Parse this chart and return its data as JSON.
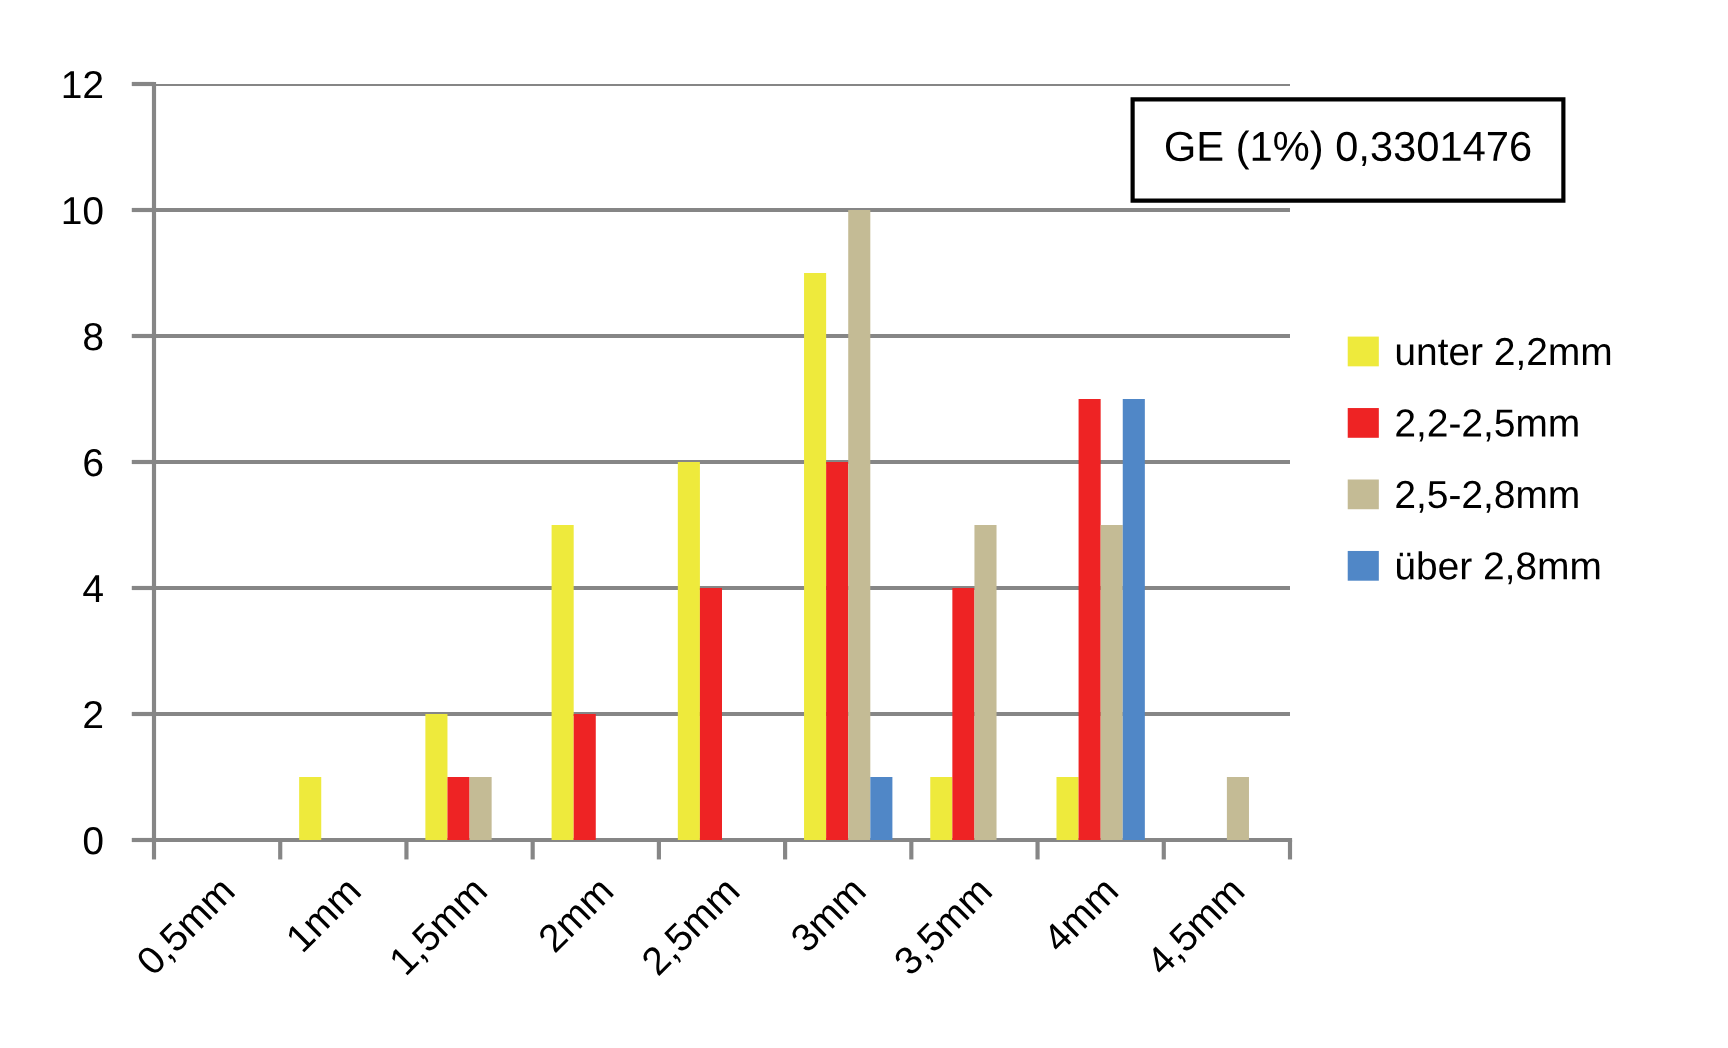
{
  "chart_data": {
    "type": "bar",
    "categories": [
      "0,5mm",
      "1mm",
      "1,5mm",
      "2mm",
      "2,5mm",
      "3mm",
      "3,5mm",
      "4mm",
      "4,5mm"
    ],
    "series": [
      {
        "name": "unter 2,2mm",
        "color": "#eeea3c",
        "values": [
          0,
          1,
          2,
          5,
          6,
          9,
          1,
          1,
          0
        ]
      },
      {
        "name": "2,2-2,5mm",
        "color": "#ee2324",
        "values": [
          0,
          0,
          1,
          2,
          4,
          6,
          4,
          7,
          0
        ]
      },
      {
        "name": "2,5-2,8mm",
        "color": "#c4bb95",
        "values": [
          0,
          0,
          1,
          0,
          0,
          10,
          5,
          5,
          1
        ]
      },
      {
        "name": "über 2,8mm",
        "color": "#5087c7",
        "values": [
          0,
          0,
          0,
          0,
          0,
          1,
          0,
          7,
          0
        ]
      }
    ],
    "ylim": [
      0,
      12
    ],
    "yticks": [
      0,
      2,
      4,
      6,
      8,
      10,
      12
    ],
    "grid": "y",
    "legend": "right",
    "annotations": [
      "GE (1%) 0,3301476"
    ]
  }
}
